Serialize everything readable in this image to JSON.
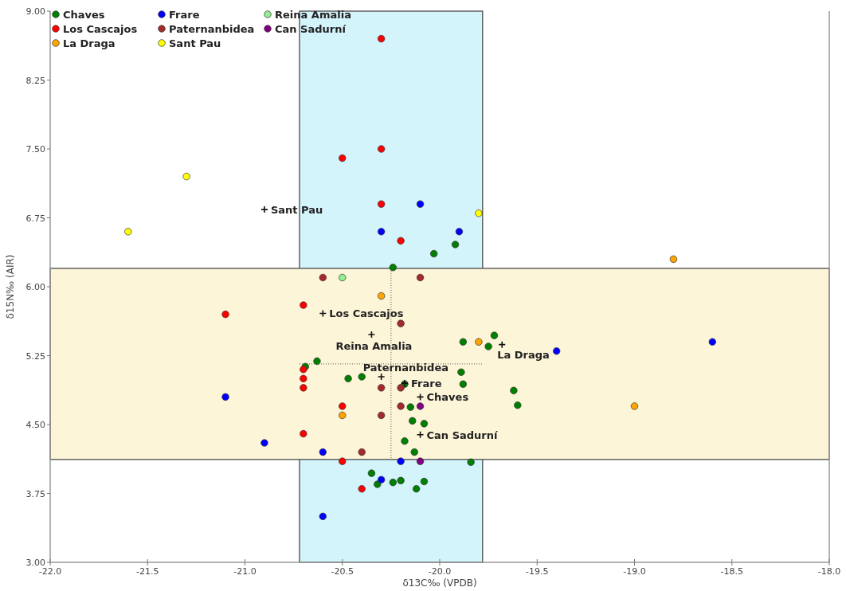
{
  "chart_data": {
    "type": "scatter",
    "xlabel": "δ13C‰ (VPDB)",
    "ylabel": "δ15N‰ (AIR)",
    "xlim": [
      -22,
      -18
    ],
    "ylim": [
      3,
      9
    ],
    "xticks": [
      {
        "value": -22,
        "label": "-22.0"
      },
      {
        "value": -21.5,
        "label": "-21.5"
      },
      {
        "value": -21,
        "label": "-21.0"
      },
      {
        "value": -20.5,
        "label": "-20.5"
      },
      {
        "value": -20,
        "label": "-20.0"
      },
      {
        "value": -19.5,
        "label": "-19.5"
      },
      {
        "value": -19,
        "label": "-19.0"
      },
      {
        "value": -18.5,
        "label": "-18.5"
      },
      {
        "value": -18,
        "label": "-18.0"
      }
    ],
    "yticks": [
      {
        "value": 3,
        "label": "3.00"
      },
      3.75,
      {
        "value": 4.5,
        "label": "4.50"
      },
      5.25,
      {
        "value": 6,
        "label": "6.00"
      },
      6.75,
      {
        "value": 7.5,
        "label": "7.50"
      },
      8.25,
      {
        "value": 9,
        "label": "9.00"
      }
    ],
    "marker": "circle",
    "legend": "top left",
    "grid": false,
    "bands": [
      {
        "axis": "x",
        "from": -20.72,
        "to": -19.78,
        "color": "#d4f4fc"
      },
      {
        "axis": "y",
        "from": 4.12,
        "to": 6.2,
        "color": "#fdf5d8"
      }
    ],
    "ref_lines": [
      {
        "axis": "x",
        "value": -20.25,
        "line_style": "dotted"
      },
      {
        "axis": "y",
        "value": 5.16,
        "line_style": "dotted"
      }
    ],
    "series": [
      {
        "name": "Chaves",
        "color": "#008000",
        "x": [
          -19.92,
          -20.03,
          -20.24,
          -19.72,
          -19.88,
          -19.75,
          -20.63,
          -20.69,
          -20.47,
          -20.4,
          -19.89,
          -19.88,
          -20.18,
          -19.62,
          -19.6,
          -20.15,
          -20.14,
          -20.08,
          -20.18,
          -20.13,
          -19.84,
          -20.35,
          -20.32,
          -20.24,
          -20.2,
          -20.08,
          -20.12
        ],
        "values": [
          6.46,
          6.36,
          6.21,
          5.47,
          5.4,
          5.35,
          5.19,
          5.13,
          5,
          5.02,
          5.07,
          4.94,
          4.94,
          4.87,
          4.71,
          4.69,
          4.54,
          4.51,
          4.32,
          4.2,
          4.09,
          3.97,
          3.85,
          3.87,
          3.89,
          3.88,
          3.8
        ]
      },
      {
        "name": "Los Cascajos",
        "color": "#ff0000",
        "x": [
          -20.3,
          -20.3,
          -20.5,
          -20.3,
          -20.2,
          -20.7,
          -21.1,
          -20.7,
          -20.7,
          -20.7,
          -20.5,
          -20.7,
          -20.5,
          -20.4
        ],
        "values": [
          8.7,
          7.5,
          7.4,
          6.9,
          6.5,
          5.8,
          5.7,
          5.1,
          5,
          4.9,
          4.7,
          4.4,
          4.1,
          3.8
        ]
      },
      {
        "name": "La Draga",
        "color": "#ffa500",
        "x": [
          -19.8,
          -20.3,
          -18.8,
          -19,
          -20.5
        ],
        "values": [
          5.4,
          5.9,
          6.3,
          4.7,
          4.6
        ]
      },
      {
        "name": "Frare",
        "color": "#0000ff",
        "x": [
          -20.1,
          -20.3,
          -19.9,
          -21.1,
          -20.9,
          -20.6,
          -20.2,
          -20.3,
          -20.6,
          -19.4,
          -18.6
        ],
        "values": [
          6.9,
          6.6,
          6.6,
          4.8,
          4.3,
          4.2,
          4.1,
          3.9,
          3.5,
          5.3,
          5.4
        ]
      },
      {
        "name": "Paternanbidea",
        "color": "#a52a2a",
        "x": [
          -20.6,
          -20.1,
          -20.2,
          -20.3,
          -20.2,
          -20.2,
          -20.3,
          -20.4
        ],
        "values": [
          6.1,
          6.1,
          5.6,
          4.9,
          4.9,
          4.7,
          4.6,
          4.2
        ]
      },
      {
        "name": "Sant Pau",
        "color": "#ffff00",
        "x": [
          -21.6,
          -21.3,
          -19.8
        ],
        "values": [
          6.6,
          7.2,
          6.8
        ]
      },
      {
        "name": "Reina Amalia",
        "color": "#90ee90",
        "x": [
          -20.5
        ],
        "values": [
          6.1
        ]
      },
      {
        "name": "Can Sadurní",
        "color": "#800080",
        "x": [
          -20.1,
          -20.1
        ],
        "values": [
          4.7,
          4.1
        ]
      },
      {
        "type": "scatter",
        "marker": "cross",
        "color": "#111111",
        "x": [
          -20.9,
          -20.6,
          -20.35,
          -20.3,
          -20.18,
          -20.1,
          -20.1,
          -19.68
        ],
        "values": [
          6.84,
          5.71,
          5.48,
          5.02,
          4.95,
          4.8,
          4.39,
          5.37
        ],
        "value_labels": [
          "Sant Pau",
          "Los Cascajos",
          "Reina Amalia",
          "Paternanbidea",
          "Frare",
          "Chaves",
          "Can Sadurní",
          "La Draga"
        ]
      }
    ]
  }
}
